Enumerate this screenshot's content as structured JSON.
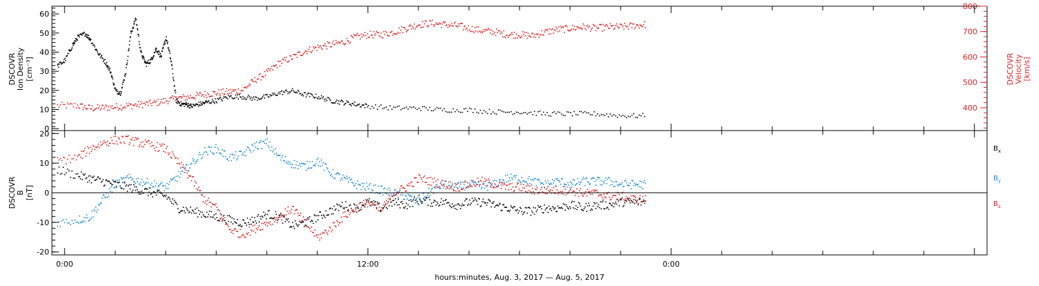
{
  "chart_data": [
    {
      "type": "scatter",
      "panel": "top",
      "ylabel_left": [
        "DSCOVR",
        "Ion Density",
        "[cm⁻³]"
      ],
      "ylabel_right": [
        "DSCOVR",
        "Velocity",
        "[km/s]"
      ],
      "ylim_left": [
        -1,
        64
      ],
      "yticks_left": [
        0,
        10,
        20,
        30,
        40,
        50,
        60
      ],
      "ylim_right": [
        310,
        800
      ],
      "yticks_right": [
        400,
        500,
        600,
        700,
        800
      ],
      "colors": {
        "density": "#000000",
        "velocity": "#e02020"
      },
      "series": [
        {
          "axis": "left",
          "color": "#000000",
          "x": [
            -0.3,
            0.0,
            0.3,
            0.5,
            0.8,
            1.0,
            1.3,
            1.6,
            1.8,
            2.0,
            2.2,
            2.4,
            2.6,
            2.8,
            3.0,
            3.2,
            3.4,
            3.6,
            3.8,
            4.0,
            4.2,
            4.4,
            4.6,
            4.8,
            5.0,
            5.3,
            5.6,
            6.0,
            6.5,
            7.0,
            7.5,
            8.0,
            8.5,
            9.0,
            9.5,
            10.0,
            10.5,
            11.0,
            11.5,
            12.0,
            13.0,
            14.0,
            15.0,
            16.0,
            17.0,
            18.0,
            19.0,
            20.0,
            21.0,
            22.0,
            23.0
          ],
          "y": [
            33,
            36,
            44,
            48,
            50,
            47,
            40,
            35,
            30,
            20,
            19,
            30,
            50,
            58,
            40,
            34,
            36,
            42,
            38,
            48,
            35,
            15,
            13,
            13,
            12,
            13,
            14,
            15,
            17,
            17,
            16,
            17,
            19,
            20,
            18,
            17,
            15,
            14,
            13,
            12,
            11,
            11,
            10,
            10,
            9,
            9,
            8,
            8,
            8,
            7,
            7
          ]
        },
        {
          "axis": "right",
          "color": "#e02020",
          "x": [
            -0.3,
            0.5,
            1.0,
            1.5,
            2.0,
            2.5,
            3.0,
            3.5,
            4.0,
            4.5,
            5.0,
            5.5,
            6.0,
            6.5,
            7.0,
            7.5,
            8.0,
            8.5,
            9.0,
            9.5,
            10.0,
            10.5,
            11.0,
            11.5,
            12.0,
            12.5,
            13.0,
            13.5,
            14.0,
            14.5,
            15.0,
            15.5,
            16.0,
            16.5,
            17.0,
            17.5,
            18.0,
            18.5,
            19.0,
            19.5,
            20.0,
            20.5,
            21.0,
            21.5,
            22.0,
            22.5,
            23.0
          ],
          "y": [
            410,
            410,
            400,
            402,
            405,
            410,
            415,
            420,
            430,
            440,
            445,
            455,
            460,
            465,
            470,
            510,
            540,
            580,
            600,
            625,
            640,
            650,
            660,
            680,
            690,
            690,
            700,
            715,
            730,
            735,
            730,
            725,
            715,
            705,
            700,
            690,
            690,
            685,
            700,
            710,
            715,
            720,
            715,
            720,
            720,
            725,
            730
          ]
        }
      ]
    },
    {
      "type": "scatter",
      "panel": "bottom",
      "ylabel": [
        "DSCOVR",
        "B",
        "[nT]"
      ],
      "ylim": [
        -21,
        21
      ],
      "yticks": [
        -20,
        -10,
        0,
        10,
        20
      ],
      "xlabel": "hours:minutes, Aug.  3, 2017 — Aug.  5, 2017",
      "xtick_labels": [
        {
          "hour": 0,
          "label": "0:00"
        },
        {
          "hour": 12,
          "label": "12:00"
        },
        {
          "hour": 24,
          "label": "0:00"
        }
      ],
      "xlim": [
        -0.5,
        36.5
      ],
      "legend": [
        "B",
        "B",
        "B"
      ],
      "legend_subscripts": [
        "x",
        "y",
        "z"
      ],
      "legend_colors": [
        "#000000",
        "#1a8ad4",
        "#e02020"
      ],
      "series": [
        {
          "color": "#000000",
          "x": [
            -0.3,
            0.5,
            1.0,
            1.5,
            2.0,
            2.5,
            3.0,
            3.5,
            4.0,
            4.5,
            5.0,
            5.5,
            6.0,
            6.5,
            7.0,
            7.5,
            8.0,
            8.5,
            9.0,
            9.5,
            10.0,
            10.5,
            11.0,
            11.5,
            12.0,
            12.5,
            13.0,
            13.5,
            14.0,
            14.5,
            15.0,
            15.5,
            16.0,
            16.5,
            17.0,
            17.5,
            18.0,
            18.5,
            19.0,
            19.5,
            20.0,
            20.5,
            21.0,
            21.5,
            22.0,
            22.5,
            23.0
          ],
          "y": [
            8,
            6,
            5,
            4,
            3,
            2,
            1,
            0,
            -1,
            -5,
            -6,
            -7,
            -8,
            -9,
            -10,
            -9,
            -7,
            -8,
            -11,
            -10,
            -8,
            -6,
            -4,
            -5,
            -3,
            -5,
            -3,
            -4,
            -2,
            -3,
            -3,
            -4,
            -3,
            -3,
            -4,
            -5,
            -6,
            -6,
            -5,
            -5,
            -4,
            -5,
            -4,
            -4,
            -3,
            -3,
            -3
          ]
        },
        {
          "color": "#1a8ad4",
          "x": [
            -0.3,
            0.5,
            1.0,
            1.5,
            2.0,
            2.5,
            3.0,
            3.5,
            4.0,
            4.5,
            5.0,
            5.5,
            6.0,
            6.5,
            7.0,
            7.5,
            8.0,
            8.5,
            9.0,
            9.5,
            10.0,
            10.5,
            11.0,
            11.5,
            12.0,
            12.5,
            13.0,
            13.5,
            14.0,
            14.5,
            15.0,
            15.5,
            16.0,
            16.5,
            17.0,
            17.5,
            18.0,
            18.5,
            19.0,
            19.5,
            20.0,
            20.5,
            21.0,
            21.5,
            22.0,
            22.5,
            23.0
          ],
          "y": [
            -10,
            -9,
            -8,
            -2,
            3,
            5,
            4,
            3,
            2,
            6,
            10,
            14,
            15,
            12,
            13,
            16,
            17,
            12,
            10,
            9,
            11,
            7,
            5,
            3,
            2,
            1,
            0,
            -1,
            -3,
            1,
            3,
            2,
            3,
            2,
            3,
            5,
            5,
            4,
            3,
            4,
            3,
            4,
            4,
            4,
            3,
            3,
            3
          ]
        },
        {
          "color": "#e02020",
          "x": [
            -0.3,
            0.5,
            1.0,
            1.5,
            2.0,
            2.5,
            3.0,
            3.5,
            4.0,
            4.5,
            5.0,
            5.5,
            6.0,
            6.5,
            7.0,
            7.5,
            8.0,
            8.5,
            9.0,
            9.5,
            10.0,
            10.5,
            11.0,
            11.5,
            12.0,
            12.5,
            13.0,
            13.5,
            14.0,
            14.5,
            15.0,
            15.5,
            16.0,
            16.5,
            17.0,
            17.5,
            18.0,
            18.5,
            19.0,
            19.5,
            20.0,
            20.5,
            21.0,
            21.5,
            22.0,
            22.5,
            23.0
          ],
          "y": [
            11,
            12,
            15,
            17,
            18,
            18,
            17,
            16,
            15,
            10,
            5,
            -2,
            -5,
            -12,
            -14,
            -12,
            -10,
            -8,
            -5,
            -10,
            -15,
            -12,
            -8,
            -5,
            -3,
            -6,
            0,
            2,
            5,
            4,
            3,
            2,
            3,
            4,
            3,
            2,
            2,
            1,
            1,
            1,
            1,
            0,
            0,
            -1,
            -1,
            -2,
            -2
          ]
        }
      ]
    }
  ]
}
